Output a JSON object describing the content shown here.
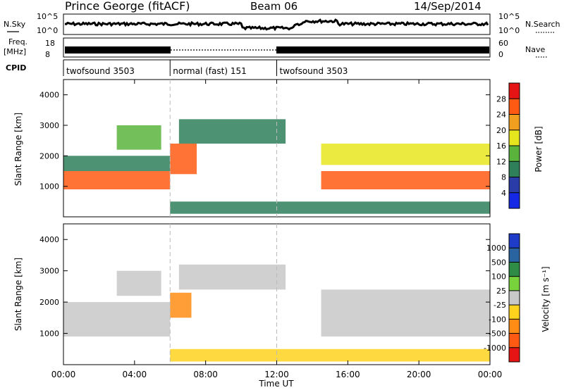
{
  "header": {
    "station": "Prince George (fitACF)",
    "beam": "Beam 06",
    "date": "14/Sep/2014"
  },
  "strips": {
    "nsky_label": "N.Sky",
    "nsky_ticks": [
      "10^5",
      "10^0"
    ],
    "nsearch_label": "N.Search",
    "nsearch_ticks": [
      "10^5",
      "10^0"
    ],
    "freq_label_1": "Freq.",
    "freq_label_2": "[MHz]",
    "freq_ticks": [
      "18",
      "8"
    ],
    "nave_label": "Nave",
    "nave_ticks": [
      "60",
      "0"
    ],
    "cpid_label": "CPID",
    "cpid_segments": [
      {
        "label": "twofsound 3503",
        "start_h": 0,
        "end_h": 6
      },
      {
        "label": "normal (fast) 151",
        "start_h": 6,
        "end_h": 12
      },
      {
        "label": "twofsound 3503",
        "start_h": 12,
        "end_h": 24
      }
    ]
  },
  "chart_data": [
    {
      "type": "heatmap",
      "name": "power",
      "ylabel": "Slant Range [km]",
      "xlabel": "",
      "xlim": [
        0,
        24
      ],
      "ylim": [
        0,
        4500
      ],
      "y_ticks": [
        "1000",
        "2000",
        "3000",
        "4000"
      ],
      "colorbar_label": "Power [dB]",
      "colorbar_ticks": [
        "4",
        "8",
        "12",
        "16",
        "20",
        "24",
        "28"
      ],
      "colorbar_colors": [
        "#1428e6",
        "#2a3ca8",
        "#2e7f5a",
        "#5ab43c",
        "#e6e61e",
        "#f0a01e",
        "#ff5a14",
        "#e61414"
      ],
      "vertical_markers_h": [
        6,
        12
      ],
      "bands": [
        {
          "start_h": 0.0,
          "end_h": 6.0,
          "range_start_km": 900,
          "range_end_km": 1500,
          "level": 24
        },
        {
          "start_h": 0.0,
          "end_h": 6.0,
          "range_start_km": 1500,
          "range_end_km": 2000,
          "level": 8
        },
        {
          "start_h": 3.0,
          "end_h": 5.5,
          "range_start_km": 2200,
          "range_end_km": 3000,
          "level": 12
        },
        {
          "start_h": 6.0,
          "end_h": 7.5,
          "range_start_km": 1400,
          "range_end_km": 2400,
          "level": 24
        },
        {
          "start_h": 6.5,
          "end_h": 12.5,
          "range_start_km": 2400,
          "range_end_km": 3200,
          "level": 8
        },
        {
          "start_h": 14.5,
          "end_h": 24.0,
          "range_start_km": 900,
          "range_end_km": 1500,
          "level": 24
        },
        {
          "start_h": 14.5,
          "end_h": 24.0,
          "range_start_km": 1700,
          "range_end_km": 2400,
          "level": 16
        },
        {
          "start_h": 6.0,
          "end_h": 24.0,
          "range_start_km": 100,
          "range_end_km": 500,
          "level": 8
        }
      ]
    },
    {
      "type": "heatmap",
      "name": "velocity",
      "ylabel": "Slant Range [km]",
      "xlabel": "Time UT",
      "xlim": [
        0,
        24
      ],
      "ylim": [
        0,
        4500
      ],
      "y_ticks": [
        "1000",
        "2000",
        "3000",
        "4000"
      ],
      "x_ticks": [
        "00:00",
        "04:00",
        "08:00",
        "12:00",
        "16:00",
        "20:00",
        "00:00"
      ],
      "colorbar_label": "Velocity [m s⁻¹]",
      "colorbar_ticks": [
        "1000",
        "500",
        "100",
        "25",
        "-25",
        "-100",
        "-500",
        "-1000"
      ],
      "colorbar_colors": [
        "#1e3cc8",
        "#2a64a0",
        "#2e8c46",
        "#78d23c",
        "#c8c8c8",
        "#ffd21e",
        "#ff8c14",
        "#ff5a14",
        "#e61414"
      ],
      "vertical_markers_h": [
        6,
        12
      ],
      "bands": [
        {
          "start_h": 0.0,
          "end_h": 6.0,
          "range_start_km": 900,
          "range_end_km": 2000,
          "level": 0
        },
        {
          "start_h": 3.0,
          "end_h": 5.5,
          "range_start_km": 2200,
          "range_end_km": 3000,
          "level": 0
        },
        {
          "start_h": 6.0,
          "end_h": 7.2,
          "range_start_km": 1500,
          "range_end_km": 2300,
          "level": -500
        },
        {
          "start_h": 6.5,
          "end_h": 12.5,
          "range_start_km": 2400,
          "range_end_km": 3200,
          "level": 0
        },
        {
          "start_h": 14.5,
          "end_h": 24.0,
          "range_start_km": 900,
          "range_end_km": 2400,
          "level": 0
        },
        {
          "start_h": 6.0,
          "end_h": 24.0,
          "range_start_km": 100,
          "range_end_km": 500,
          "level": -100
        }
      ]
    }
  ]
}
